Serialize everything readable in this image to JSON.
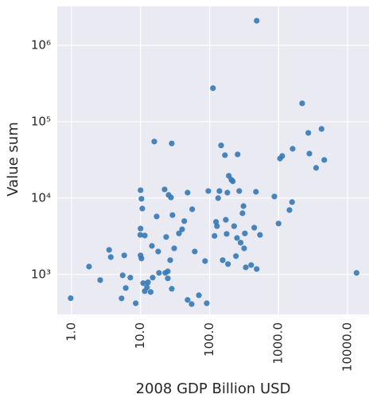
{
  "chart_data": {
    "type": "scatter",
    "xlabel": "2008 GDP Billion USD",
    "ylabel": "Value sum",
    "xscale": "log",
    "yscale": "log",
    "grid": true,
    "color": "#3479b5",
    "xlim": [
      0.62,
      20500
    ],
    "ylim": [
      300,
      3240000
    ],
    "xticks": [
      {
        "value": 1,
        "label": "1.0"
      },
      {
        "value": 10,
        "label": "10.0"
      },
      {
        "value": 100,
        "label": "100.0"
      },
      {
        "value": 1000,
        "label": "1000.0"
      },
      {
        "value": 10000,
        "label": "10000.0"
      }
    ],
    "yticks": [
      {
        "value": 1000,
        "label": "10³"
      },
      {
        "value": 10000,
        "label": "10⁴"
      },
      {
        "value": 100000,
        "label": "10⁵"
      },
      {
        "value": 1000000,
        "label": "10⁶"
      }
    ],
    "x": [
      0.97,
      1.79,
      2.6,
      3.5,
      3.7,
      5.3,
      5.5,
      5.8,
      6.1,
      7.1,
      8.5,
      9.9,
      10,
      10.3,
      10.6,
      10,
      10,
      10.3,
      10.9,
      11.5,
      12.4,
      11.5,
      12.8,
      14,
      14.6,
      15,
      15.8,
      17.1,
      18,
      18.5,
      22.3,
      22.8,
      23.5,
      24.8,
      24.8,
      25.5,
      26.9,
      27.6,
      28.3,
      29,
      28.3,
      30.7,
      36,
      40,
      43,
      48,
      48,
      55,
      56,
      61,
      70,
      86,
      91,
      96,
      112,
      118,
      124,
      128,
      133,
      139,
      147,
      155,
      167,
      172,
      177,
      181,
      185,
      190,
      207,
      217,
      227,
      241,
      250,
      255,
      269,
      282,
      300,
      310,
      317,
      325,
      335,
      401,
      444,
      482,
      470,
      482,
      538,
      870,
      1000,
      1050,
      1130,
      1440,
      1570,
      1600,
      2200,
      2700,
      2800,
      3500,
      4200,
      4600,
      13500
    ],
    "values": [
      490,
      1270,
      845,
      2100,
      1690,
      487,
      975,
      1780,
      665,
      910,
      420,
      3300,
      12700,
      9800,
      7300,
      4000,
      1780,
      1620,
      770,
      605,
      680,
      3240,
      790,
      590,
      2370,
      910,
      55000,
      5750,
      2000,
      1050,
      13000,
      1050,
      3100,
      890,
      1100,
      11000,
      1540,
      10200,
      52000,
      6000,
      650,
      2200,
      3450,
      3900,
      5000,
      465,
      11800,
      410,
      7150,
      2000,
      535,
      1500,
      420,
      12400,
      275000,
      3200,
      4880,
      4300,
      10000,
      12400,
      49000,
      1540,
      36500,
      5200,
      3400,
      11800,
      1370,
      19600,
      17400,
      16600,
      4300,
      1740,
      3010,
      37400,
      12400,
      2610,
      6340,
      7870,
      2200,
      3450,
      1240,
      1330,
      4100,
      2100000,
      12100,
      1180,
      3300,
      10500,
      4650,
      33000,
      35600,
      6980,
      8870,
      44300,
      174000,
      71500,
      38300,
      24900,
      80500,
      31600,
      1050
    ]
  }
}
